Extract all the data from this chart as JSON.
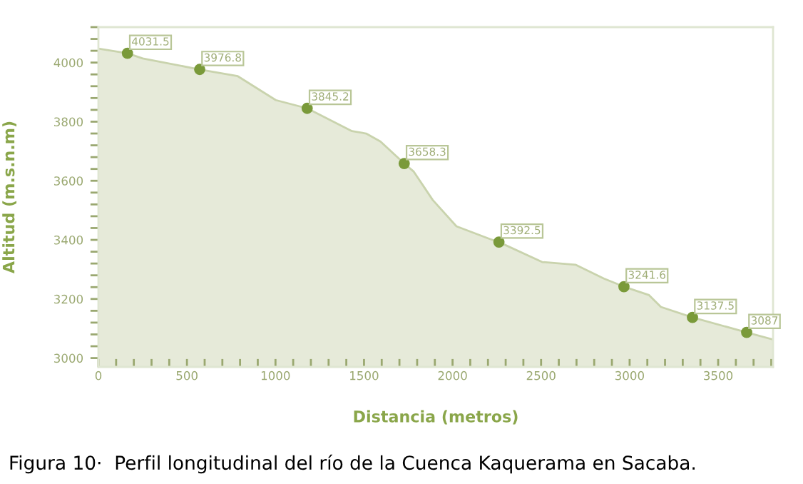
{
  "chart_data": {
    "type": "area",
    "xlabel": "Distancia (metros)",
    "ylabel": "Altitud (m.s.n.m)",
    "annotations": [
      "Figura 10·  Perfil longitudinal del río de la Cuenca Kaquerama en Sacaba."
    ],
    "xlim": [
      0,
      3810
    ],
    "ylim": [
      2970,
      4120
    ],
    "xticks": [
      0,
      {
        "value": 100,
        "label": null
      },
      {
        "value": 200,
        "label": null
      },
      {
        "value": 300,
        "label": null
      },
      {
        "value": 400,
        "label": null
      },
      500,
      {
        "value": 600,
        "label": null
      },
      {
        "value": 700,
        "label": null
      },
      {
        "value": 800,
        "label": null
      },
      {
        "value": 900,
        "label": null
      },
      1000,
      {
        "value": 1100,
        "label": null
      },
      {
        "value": 1200,
        "label": null
      },
      {
        "value": 1300,
        "label": null
      },
      {
        "value": 1400,
        "label": null
      },
      1500,
      {
        "value": 1600,
        "label": null
      },
      {
        "value": 1700,
        "label": null
      },
      {
        "value": 1800,
        "label": null
      },
      {
        "value": 1900,
        "label": null
      },
      2000,
      {
        "value": 2100,
        "label": null
      },
      {
        "value": 2200,
        "label": null
      },
      {
        "value": 2300,
        "label": null
      },
      {
        "value": 2400,
        "label": null
      },
      2500,
      {
        "value": 2600,
        "label": null
      },
      {
        "value": 2700,
        "label": null
      },
      {
        "value": 2800,
        "label": null
      },
      {
        "value": 2900,
        "label": null
      },
      3000,
      {
        "value": 3100,
        "label": null
      },
      {
        "value": 3200,
        "label": null
      },
      {
        "value": 3300,
        "label": null
      },
      {
        "value": 3400,
        "label": null
      },
      3500,
      {
        "value": 3600,
        "label": null
      },
      {
        "value": 3700,
        "label": null
      },
      {
        "value": 3800,
        "label": null
      }
    ],
    "yticks": [
      3000,
      {
        "value": 3040,
        "label": null
      },
      {
        "value": 3080,
        "label": null
      },
      {
        "value": 3120,
        "label": null
      },
      {
        "value": 3160,
        "label": null
      },
      3200,
      {
        "value": 3240,
        "label": null
      },
      {
        "value": 3280,
        "label": null
      },
      {
        "value": 3320,
        "label": null
      },
      {
        "value": 3360,
        "label": null
      },
      3400,
      {
        "value": 3440,
        "label": null
      },
      {
        "value": 3480,
        "label": null
      },
      {
        "value": 3520,
        "label": null
      },
      {
        "value": 3560,
        "label": null
      },
      3600,
      {
        "value": 3640,
        "label": null
      },
      {
        "value": 3680,
        "label": null
      },
      {
        "value": 3720,
        "label": null
      },
      {
        "value": 3760,
        "label": null
      },
      3800,
      {
        "value": 3840,
        "label": null
      },
      {
        "value": 3880,
        "label": null
      },
      {
        "value": 3920,
        "label": null
      },
      {
        "value": 3960,
        "label": null
      },
      4000,
      {
        "value": 4040,
        "label": null
      },
      {
        "value": 4080,
        "label": null
      },
      {
        "value": 4120,
        "label": null
      }
    ],
    "grid": false,
    "series": [
      {
        "color": "#e6ead9",
        "x": [
          0,
          164,
          250,
          572,
          787,
          1002,
          1179,
          1432,
          1512,
          1593,
          1727,
          1781,
          1888,
          2022,
          2210,
          2262,
          2506,
          2694,
          2855,
          2968,
          3110,
          3177,
          3355,
          3661,
          3809
        ],
        "values": [
          4047,
          4031.5,
          4014,
          3976.8,
          3954,
          3873,
          3845.2,
          3768,
          3760,
          3733,
          3658.3,
          3631,
          3535,
          3446,
          3403,
          3392.5,
          3325,
          3316,
          3269,
          3241.6,
          3213,
          3173,
          3137.5,
          3087,
          3063
        ]
      },
      {
        "type": "scatter",
        "color": "#7a9a3a",
        "marker": "circle",
        "x": [
          164,
          572,
          1179,
          1727,
          2262,
          2968,
          3355,
          3661
        ],
        "values": [
          4031.5,
          3976.8,
          3845.2,
          3658.3,
          3392.5,
          3241.6,
          3137.5,
          3087
        ],
        "value_labels": [
          "4031.5",
          "3976.8",
          "3845.2",
          "3658.3",
          "3392.5",
          "3241.6",
          "3137.5",
          "3087"
        ]
      }
    ]
  }
}
